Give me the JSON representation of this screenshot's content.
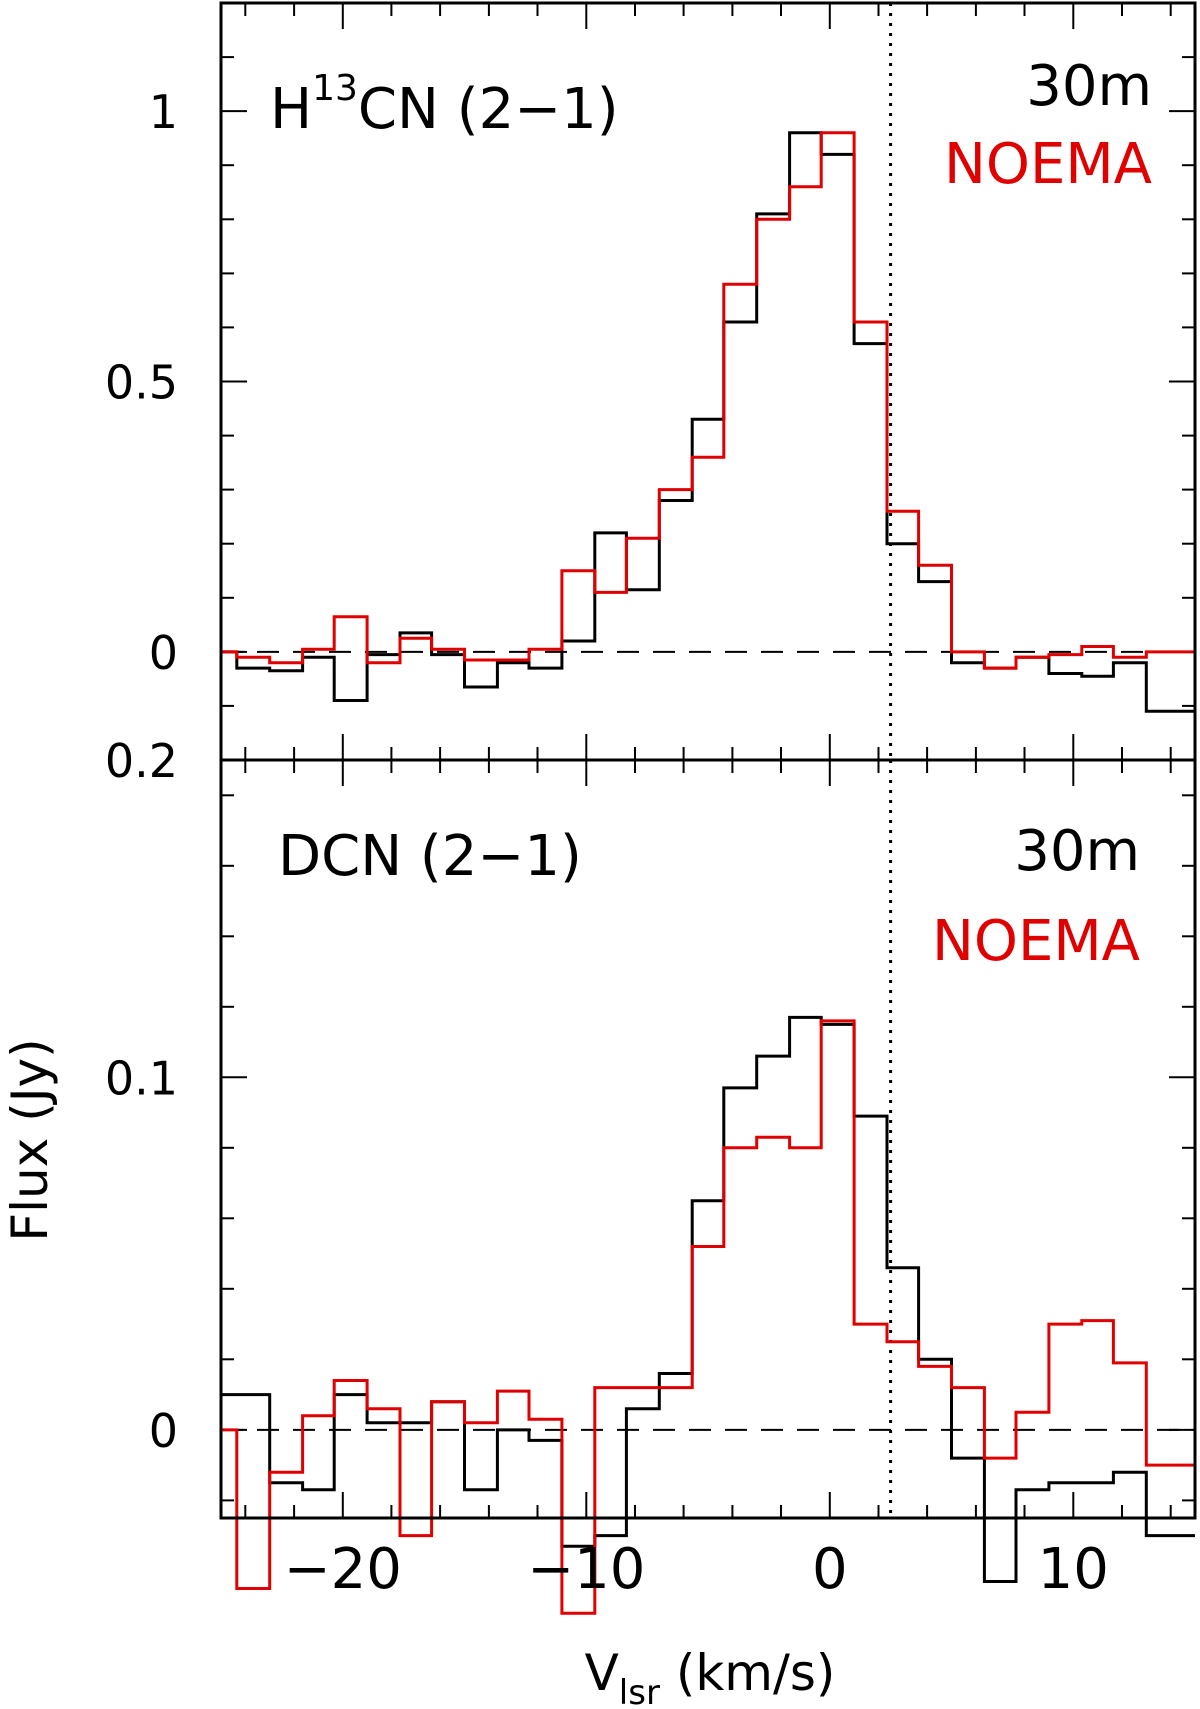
{
  "figure": {
    "ylabel": "Flux (Jy)",
    "xlabel_main": "V",
    "xlabel_sub": "lsr",
    "xlabel_units": " (km/s)",
    "vline_x": 2.5,
    "xlim": [
      -25,
      15
    ],
    "xticks_major": [
      -20,
      -10,
      0,
      10
    ],
    "xtick_labels": [
      "−20",
      "−10",
      "0",
      "10"
    ],
    "colors": {
      "30m": "#000000",
      "NOEMA": "#e00000"
    }
  },
  "chart_data": [
    {
      "type": "line",
      "drawstyle": "steps-mid",
      "title_main": "H",
      "title_sup": "13",
      "title_rest": "CN (2−1)",
      "legend": [
        "30m",
        "NOEMA"
      ],
      "legend_placement": "top-right",
      "ylim": [
        -0.2,
        1.2
      ],
      "yticks_major": [
        0,
        0.5,
        1
      ],
      "ytick_labels": [
        "0",
        "0.5",
        "1"
      ],
      "extra_label": "0.2",
      "x": [
        -25,
        -23.7,
        -22.3,
        -21,
        -19.7,
        -18.3,
        -17,
        -15.7,
        -14.3,
        -13,
        -11.7,
        -10.3,
        -9,
        -7.7,
        -6.3,
        -5,
        -3.7,
        -2.3,
        -1,
        0.3,
        1.7,
        3,
        4.3,
        5.7,
        7,
        8.3,
        9.7,
        11,
        12.3,
        13.7,
        15
      ],
      "series": [
        {
          "name": "30m",
          "values": [
            0,
            -0.03,
            -0.035,
            -0.01,
            -0.09,
            -0.005,
            0.035,
            -0.005,
            -0.065,
            -0.02,
            -0.03,
            0.02,
            0.22,
            0.115,
            0.28,
            0.43,
            0.61,
            0.81,
            0.96,
            0.92,
            0.57,
            0.2,
            0.13,
            -0.02,
            -0.03,
            -0.01,
            -0.04,
            -0.045,
            -0.02,
            -0.11,
            -0.11
          ]
        },
        {
          "name": "NOEMA",
          "values": [
            0,
            -0.01,
            -0.02,
            0.005,
            0.065,
            -0.02,
            0.025,
            0.005,
            -0.015,
            -0.015,
            0.005,
            0.15,
            0.11,
            0.21,
            0.3,
            0.36,
            0.68,
            0.8,
            0.86,
            0.96,
            0.61,
            0.26,
            0.16,
            0,
            -0.03,
            -0.01,
            -0.005,
            0.01,
            -0.01,
            0,
            0
          ]
        }
      ]
    },
    {
      "type": "line",
      "drawstyle": "steps-mid",
      "title": "DCN (2−1)",
      "legend": [
        "30m",
        "NOEMA"
      ],
      "legend_placement": "top-right",
      "ylim": [
        -0.025,
        0.19
      ],
      "yticks_major": [
        0,
        0.1
      ],
      "ytick_labels": [
        "0",
        "0.1"
      ],
      "x": [
        -25,
        -23.7,
        -22.3,
        -21,
        -19.7,
        -18.3,
        -17,
        -15.7,
        -14.3,
        -13,
        -11.7,
        -10.3,
        -9,
        -7.7,
        -6.3,
        -5,
        -3.7,
        -2.3,
        -1,
        0.3,
        1.7,
        3,
        4.3,
        5.7,
        7,
        8.3,
        9.7,
        11,
        12.3,
        13.7,
        15
      ],
      "series": [
        {
          "name": "30m",
          "values": [
            0.01,
            0.01,
            -0.015,
            -0.017,
            0.01,
            0.002,
            0.002,
            0.008,
            -0.017,
            0,
            -0.003,
            -0.033,
            -0.03,
            0.006,
            0.016,
            0.065,
            0.097,
            0.106,
            0.117,
            0.115,
            0.089,
            0.046,
            0.02,
            -0.008,
            -0.043,
            -0.017,
            -0.015,
            -0.015,
            -0.012,
            -0.03,
            -0.03
          ]
        },
        {
          "name": "NOEMA",
          "values": [
            0,
            -0.045,
            -0.012,
            0.004,
            0.014,
            0.006,
            -0.03,
            0.008,
            0.002,
            0.011,
            0.003,
            -0.052,
            0.012,
            0.012,
            0.012,
            0.052,
            0.08,
            0.083,
            0.08,
            0.116,
            0.03,
            0.025,
            0.018,
            0.012,
            -0.008,
            0.005,
            0.03,
            0.031,
            0.019,
            -0.01,
            -0.01
          ]
        }
      ]
    }
  ]
}
